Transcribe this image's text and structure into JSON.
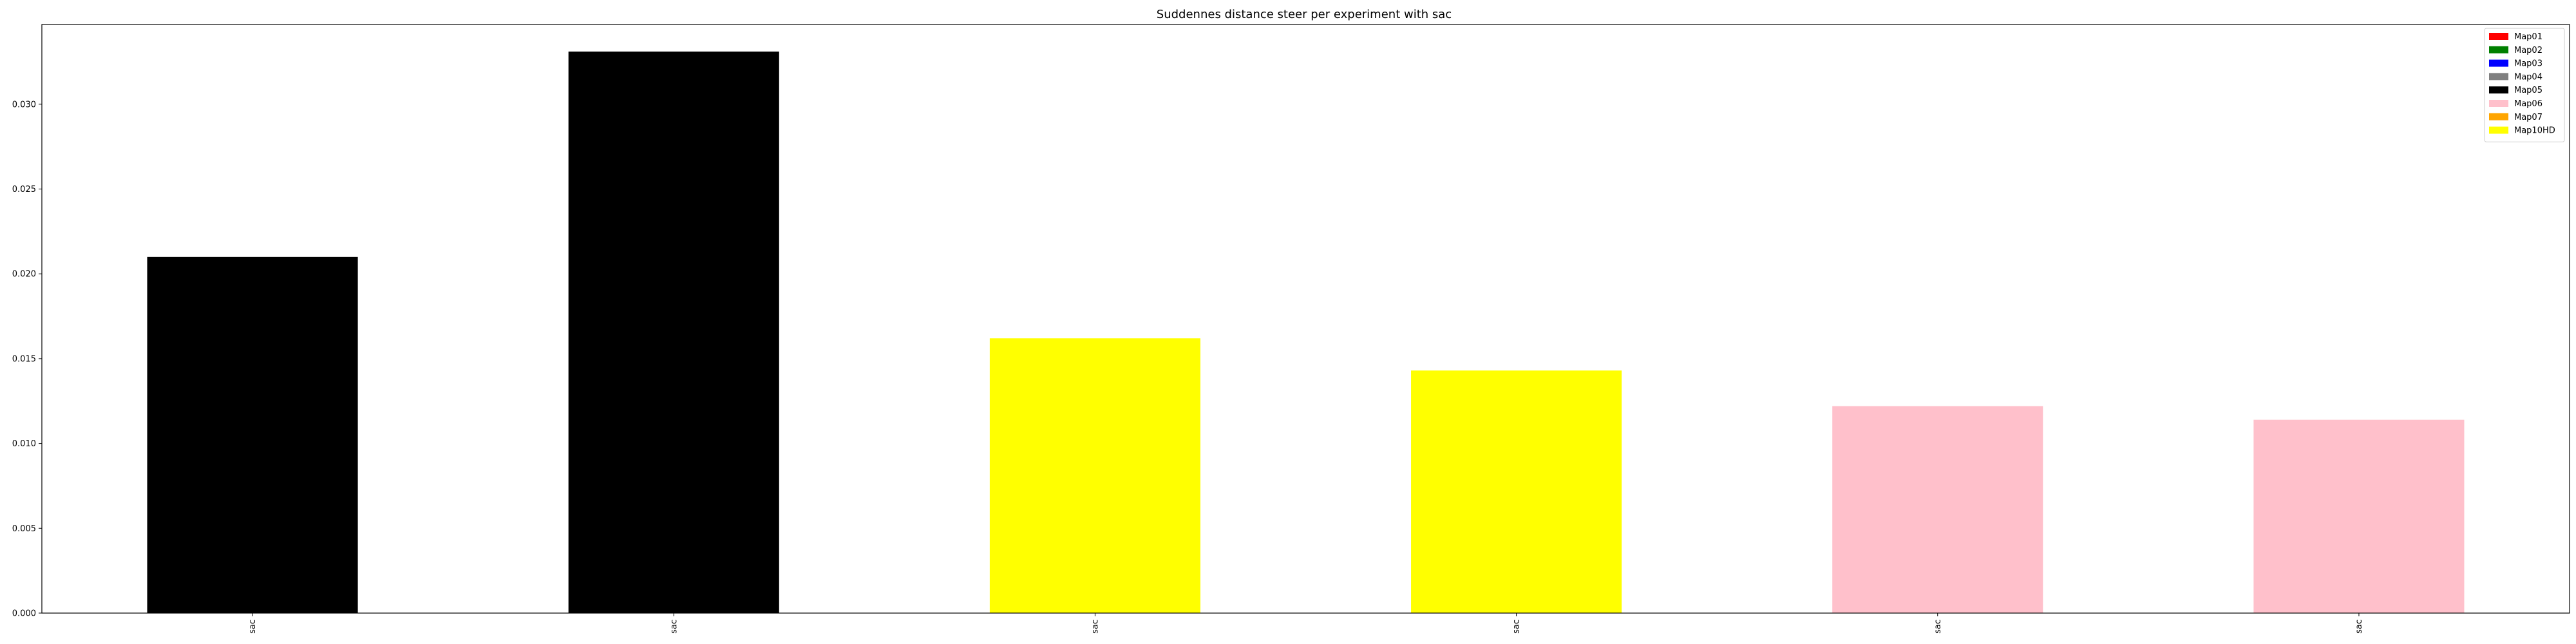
{
  "chart_data": {
    "type": "bar",
    "title": "Suddennes distance steer per experiment with sac",
    "xlabel": "",
    "ylabel": "",
    "categories": [
      "sac",
      "sac",
      "sac",
      "sac",
      "sac",
      "sac"
    ],
    "values": [
      0.021,
      0.0331,
      0.0162,
      0.0143,
      0.0122,
      0.0114
    ],
    "bar_map": [
      "Map05",
      "Map05",
      "Map10HD",
      "Map10HD",
      "Map06",
      "Map06"
    ],
    "ylim": [
      0,
      0.0347
    ],
    "yticks": [
      "0.000",
      "0.005",
      "0.010",
      "0.015",
      "0.020",
      "0.025",
      "0.030"
    ],
    "ytick_values": [
      0,
      0.005,
      0.01,
      0.015,
      0.02,
      0.025,
      0.03
    ],
    "grid": false,
    "legend_position": "top-right",
    "legend": [
      {
        "name": "Map01",
        "color": "#ff0000"
      },
      {
        "name": "Map02",
        "color": "#008000"
      },
      {
        "name": "Map03",
        "color": "#0000ff"
      },
      {
        "name": "Map04",
        "color": "#808080"
      },
      {
        "name": "Map05",
        "color": "#000000"
      },
      {
        "name": "Map06",
        "color": "#ffc0cb"
      },
      {
        "name": "Map07",
        "color": "#ffa500"
      },
      {
        "name": "Map10HD",
        "color": "#ffff00"
      }
    ]
  }
}
